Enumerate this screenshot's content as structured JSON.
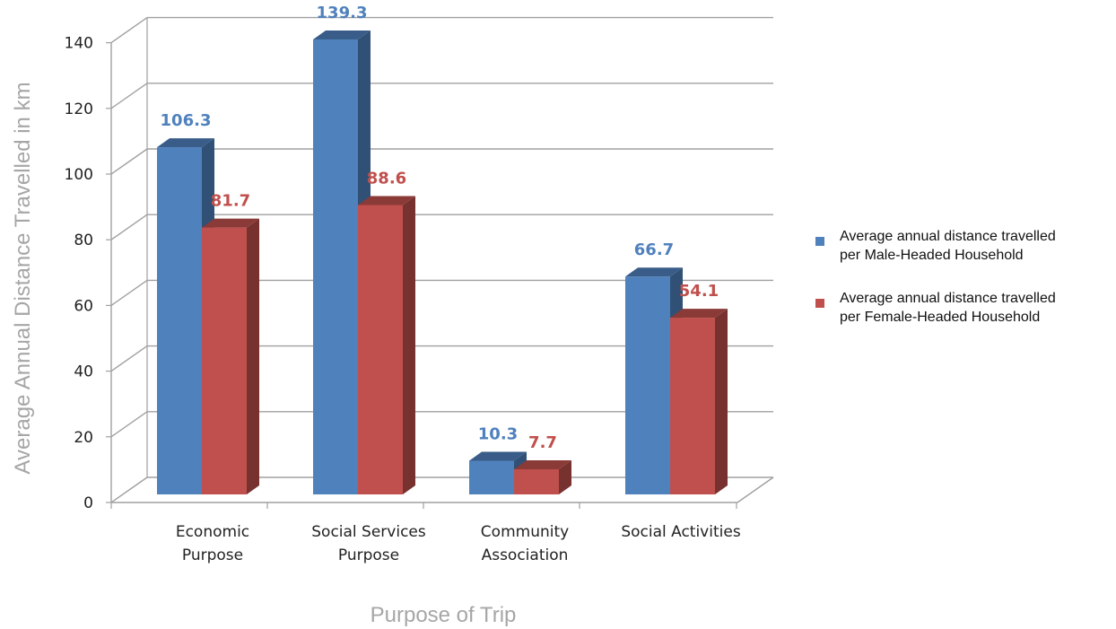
{
  "chart_data": {
    "type": "bar",
    "categories": [
      [
        "Economic",
        "Purpose"
      ],
      [
        "Social Services",
        "Purpose"
      ],
      [
        "Community",
        "Association"
      ],
      [
        "Social Activities"
      ]
    ],
    "series": [
      {
        "name": [
          "Average annual distance travelled",
          "per Male-Headed Household"
        ],
        "values": [
          106.3,
          139.3,
          10.3,
          66.7
        ],
        "color": "#4f81bd",
        "label_color": "#4f81bd"
      },
      {
        "name": [
          "Average annual distance travelled",
          "per Female-Headed Household"
        ],
        "values": [
          81.7,
          88.6,
          7.7,
          54.1
        ],
        "color": "#c0504d",
        "label_color": "#c0504d"
      }
    ],
    "value_labels": [
      [
        "106.3",
        "139.3",
        "10.3",
        "66.7"
      ],
      [
        "81.7",
        "88.6",
        "7.7",
        "54.1"
      ]
    ],
    "yticks": [
      "0",
      "20",
      "40",
      "60",
      "80",
      "100",
      "120",
      "140"
    ],
    "ylim": [
      0,
      140
    ],
    "xlabel": "Purpose of Trip",
    "ylabel": "Average Annual Distance Travelled in km",
    "grid": true,
    "legend_position": "right"
  }
}
